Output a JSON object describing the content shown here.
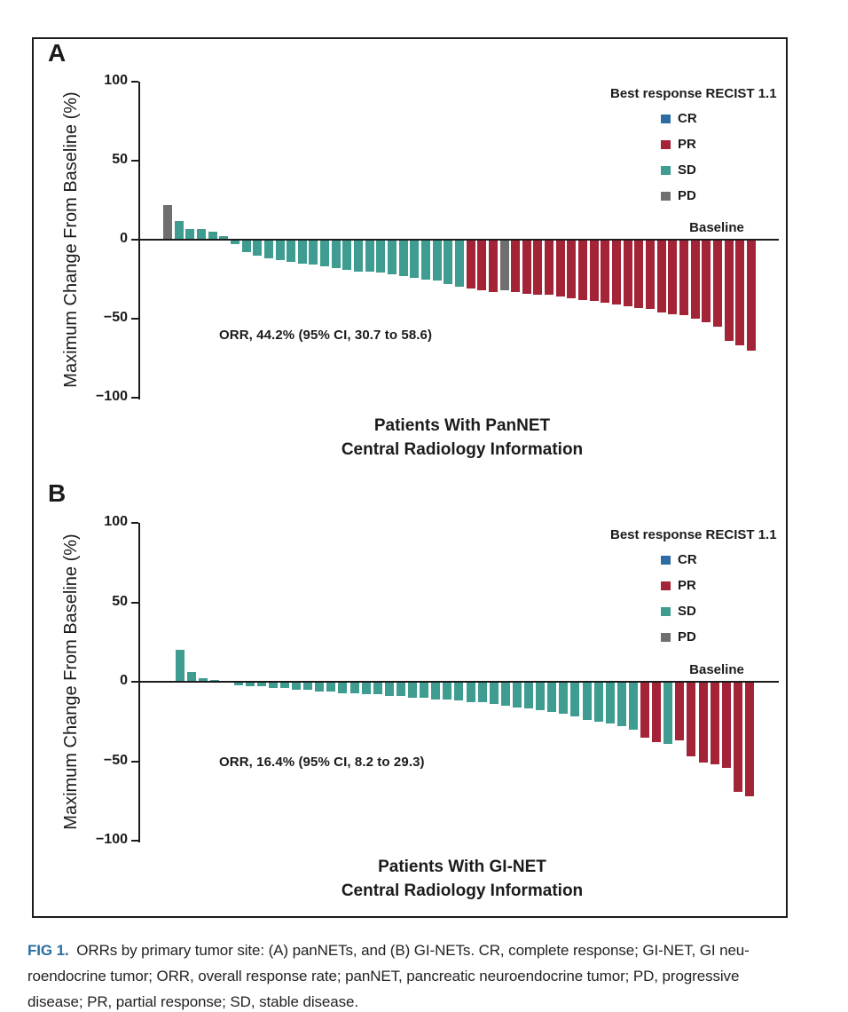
{
  "colors": {
    "CR": "#2e6da4",
    "PR": "#a32337",
    "SD": "#3e9c91",
    "PD": "#6f6f6f",
    "axis": "#1b1b1b",
    "fig_label_blue": "#2a6f9e"
  },
  "caption": {
    "fig_label": "FIG 1.",
    "lines": [
      "ORRs by primary tumor site: (A) panNETs, and (B) GI-NETs. CR, complete response; GI-NET, GI neu-",
      "roendocrine tumor; ORR, overall response rate; panNET, pancreatic neuroendocrine tumor; PD, progressive",
      "disease; PR, partial response; SD, stable disease."
    ]
  },
  "chart_data": [
    {
      "type": "bar",
      "subtype": "waterfall",
      "panel_label": "A",
      "ylabel": "Maximum Change From Baseline (%)",
      "xlabel_lines": [
        "Patients With PanNET",
        "Central Radiology Information"
      ],
      "ylim": [
        -100,
        100
      ],
      "yticks": [
        100,
        50,
        0,
        -50,
        -100
      ],
      "grid": false,
      "baseline_label": "Baseline",
      "annotation": "ORR, 44.2% (95% CI, 30.7 to 58.6)",
      "legend": {
        "title": "Best response RECIST 1.1",
        "position": "upper right",
        "entries": [
          {
            "label": "CR",
            "key": "CR"
          },
          {
            "label": "PR",
            "key": "PR"
          },
          {
            "label": "SD",
            "key": "SD"
          },
          {
            "label": "PD",
            "key": "PD"
          }
        ]
      },
      "values": [
        22,
        12,
        7,
        7,
        5,
        2,
        -3,
        -8,
        -10,
        -12,
        -13,
        -14,
        -15,
        -16,
        -17,
        -18,
        -19,
        -20,
        -20,
        -21,
        -22,
        -23,
        -24,
        -25,
        -26,
        -28,
        -30,
        -31,
        -32,
        -33,
        -32,
        -33,
        -34,
        -35,
        -35,
        -36,
        -37,
        -38,
        -39,
        -40,
        -41,
        -42,
        -43,
        -44,
        -46,
        -47,
        -48,
        -50,
        -52,
        -55,
        -64,
        -67,
        -70
      ],
      "responses": [
        "PD",
        "SD",
        "SD",
        "SD",
        "SD",
        "SD",
        "SD",
        "SD",
        "SD",
        "SD",
        "SD",
        "SD",
        "SD",
        "SD",
        "SD",
        "SD",
        "SD",
        "SD",
        "SD",
        "SD",
        "SD",
        "SD",
        "SD",
        "SD",
        "SD",
        "SD",
        "SD",
        "PR",
        "PR",
        "PR",
        "PD",
        "PR",
        "PR",
        "PR",
        "PR",
        "PR",
        "PR",
        "PR",
        "PR",
        "PR",
        "PR",
        "PR",
        "PR",
        "PR",
        "PR",
        "PR",
        "PR",
        "PR",
        "PR",
        "PR",
        "PR",
        "PR",
        "PR"
      ]
    },
    {
      "type": "bar",
      "subtype": "waterfall",
      "panel_label": "B",
      "ylabel": "Maximum Change From Baseline (%)",
      "xlabel_lines": [
        "Patients With GI-NET",
        "Central Radiology Information"
      ],
      "ylim": [
        -100,
        100
      ],
      "yticks": [
        100,
        50,
        0,
        -50,
        -100
      ],
      "grid": false,
      "baseline_label": "Baseline",
      "annotation": "ORR, 16.4% (95% CI, 8.2 to 29.3)",
      "legend": {
        "title": "Best response RECIST 1.1",
        "position": "upper right",
        "entries": [
          {
            "label": "CR",
            "key": "CR"
          },
          {
            "label": "PR",
            "key": "PR"
          },
          {
            "label": "SD",
            "key": "SD"
          },
          {
            "label": "PD",
            "key": "PD"
          }
        ]
      },
      "values": [
        20,
        6,
        2,
        1,
        0,
        -2,
        -3,
        -3,
        -4,
        -4,
        -5,
        -5,
        -6,
        -6,
        -7,
        -7,
        -8,
        -8,
        -9,
        -9,
        -10,
        -10,
        -11,
        -11,
        -12,
        -13,
        -13,
        -14,
        -15,
        -16,
        -17,
        -18,
        -19,
        -20,
        -22,
        -24,
        -25,
        -26,
        -28,
        -30,
        -35,
        -38,
        -39,
        -37,
        -47,
        -51,
        -52,
        -54,
        -69,
        -72
      ],
      "responses": [
        "SD",
        "SD",
        "SD",
        "SD",
        "SD",
        "SD",
        "SD",
        "SD",
        "SD",
        "SD",
        "SD",
        "SD",
        "SD",
        "SD",
        "SD",
        "SD",
        "SD",
        "SD",
        "SD",
        "SD",
        "SD",
        "SD",
        "SD",
        "SD",
        "SD",
        "SD",
        "SD",
        "SD",
        "SD",
        "SD",
        "SD",
        "SD",
        "SD",
        "SD",
        "SD",
        "SD",
        "SD",
        "SD",
        "SD",
        "SD",
        "PR",
        "PR",
        "SD",
        "PR",
        "PR",
        "PR",
        "PR",
        "PR",
        "PR",
        "PR"
      ]
    }
  ]
}
